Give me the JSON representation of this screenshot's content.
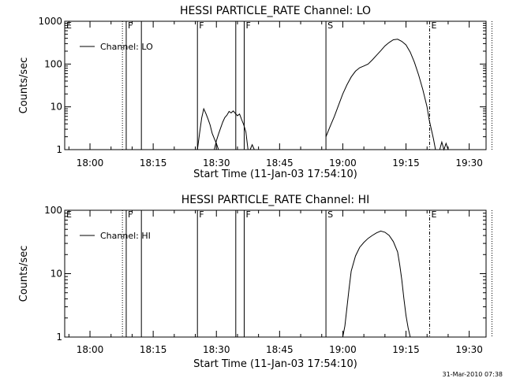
{
  "timestamp": "31-Mar-2010 07:38",
  "chart_data": [
    {
      "type": "line",
      "title": "HESSI PARTICLE_RATE Channel: LO",
      "xlabel": "Start Time (11-Jan-03 17:54:10)",
      "ylabel": "Counts/sec",
      "ylog": true,
      "ylim": [
        1,
        1000
      ],
      "xlim_min": [
        0,
        100
      ],
      "xticks": [
        {
          "label": "18:00",
          "min": 6
        },
        {
          "label": "18:15",
          "min": 21
        },
        {
          "label": "18:30",
          "min": 36
        },
        {
          "label": "18:45",
          "min": 51
        },
        {
          "label": "19:00",
          "min": 66
        },
        {
          "label": "19:15",
          "min": 81
        },
        {
          "label": "19:30",
          "min": 96
        }
      ],
      "yticks": [
        {
          "label": "1",
          "value": 1
        },
        {
          "label": "10",
          "value": 10
        },
        {
          "label": "100",
          "value": 100
        },
        {
          "label": "1000",
          "value": 1000
        }
      ],
      "legend": {
        "name": "Channel: LO",
        "position": "top-left"
      },
      "flags": [
        {
          "label": "E",
          "min": 0,
          "style": "none"
        },
        {
          "label": "",
          "min": 13.7,
          "style": "dotted"
        },
        {
          "label": "F",
          "min": 14.6,
          "style": "solid"
        },
        {
          "label": "",
          "min": 18.2,
          "style": "solid"
        },
        {
          "label": "F",
          "min": 31.5,
          "style": "solid"
        },
        {
          "label": "",
          "min": 40.6,
          "style": "solid"
        },
        {
          "label": "F",
          "min": 42.6,
          "style": "solid"
        },
        {
          "label": "S",
          "min": 62.0,
          "style": "solid"
        },
        {
          "label": "E",
          "min": 86.6,
          "style": "dashdot"
        },
        {
          "label": "",
          "min": 101.4,
          "style": "dotted"
        }
      ],
      "segments": [
        {
          "x": [
            31.5,
            32,
            32.5,
            33,
            33.5,
            34,
            34.5,
            35,
            35.5,
            36,
            36.5
          ],
          "y": [
            1.0,
            2.4,
            5.5,
            9.0,
            7.0,
            5.2,
            3.8,
            2.4,
            1.8,
            1.4,
            1.0
          ]
        },
        {
          "x": [
            35.5,
            36,
            36.5,
            37,
            37.5,
            38,
            38.5,
            39,
            39.5,
            40,
            40.5,
            41,
            41.5,
            42,
            42.5,
            43,
            43.5
          ],
          "y": [
            1.0,
            1.6,
            2.3,
            3.2,
            4.4,
            5.6,
            6.4,
            7.8,
            7.2,
            8.0,
            7.0,
            6.2,
            6.8,
            5.0,
            3.8,
            2.6,
            1.0
          ]
        },
        {
          "x": [
            44,
            44.5,
            45
          ],
          "y": [
            1.0,
            1.3,
            1.0
          ]
        },
        {
          "x": [
            62,
            63,
            64,
            65,
            66,
            67,
            68,
            69,
            70,
            71,
            72,
            73,
            74,
            75,
            76,
            77,
            78,
            79,
            80,
            81,
            82,
            83,
            84,
            85,
            86,
            86.5,
            87,
            87.5,
            88
          ],
          "y": [
            2.0,
            3.5,
            6.0,
            11,
            20,
            33,
            50,
            68,
            82,
            90,
            100,
            125,
            160,
            205,
            265,
            320,
            370,
            380,
            340,
            280,
            190,
            110,
            55,
            25,
            10,
            5,
            3,
            1.8,
            1.0
          ]
        },
        {
          "x": [
            89,
            89.5,
            90,
            90.5,
            91
          ],
          "y": [
            1.0,
            1.5,
            1.0,
            1.4,
            1.0
          ]
        }
      ]
    },
    {
      "type": "line",
      "title": "HESSI PARTICLE_RATE Channel: HI",
      "xlabel": "Start Time (11-Jan-03 17:54:10)",
      "ylabel": "Counts/sec",
      "ylog": true,
      "ylim": [
        1,
        100
      ],
      "xlim_min": [
        0,
        100
      ],
      "xticks": [
        {
          "label": "18:00",
          "min": 6
        },
        {
          "label": "18:15",
          "min": 21
        },
        {
          "label": "18:30",
          "min": 36
        },
        {
          "label": "18:45",
          "min": 51
        },
        {
          "label": "19:00",
          "min": 66
        },
        {
          "label": "19:15",
          "min": 81
        },
        {
          "label": "19:30",
          "min": 96
        }
      ],
      "yticks": [
        {
          "label": "1",
          "value": 1
        },
        {
          "label": "10",
          "value": 10
        },
        {
          "label": "100",
          "value": 100
        }
      ],
      "legend": {
        "name": "Channel: HI",
        "position": "top-left"
      },
      "flags": [
        {
          "label": "E",
          "min": 0,
          "style": "none"
        },
        {
          "label": "",
          "min": 13.7,
          "style": "dotted"
        },
        {
          "label": "F",
          "min": 14.6,
          "style": "solid"
        },
        {
          "label": "",
          "min": 18.2,
          "style": "solid"
        },
        {
          "label": "F",
          "min": 31.5,
          "style": "solid"
        },
        {
          "label": "",
          "min": 40.6,
          "style": "solid"
        },
        {
          "label": "F",
          "min": 42.6,
          "style": "solid"
        },
        {
          "label": "S",
          "min": 62.0,
          "style": "solid"
        },
        {
          "label": "E",
          "min": 86.6,
          "style": "dashdot"
        },
        {
          "label": "",
          "min": 101.4,
          "style": "dotted"
        }
      ],
      "segments": [
        {
          "x": [
            66,
            66.5,
            67,
            67.5,
            68,
            69,
            70,
            71,
            72,
            73,
            74,
            75,
            76,
            77,
            78,
            79,
            79.5,
            80,
            80.5,
            81,
            81.5,
            82
          ],
          "y": [
            1.0,
            1.5,
            3.0,
            6.0,
            11,
            19,
            26,
            31,
            36,
            40,
            44,
            47,
            45,
            40,
            32,
            22,
            14,
            8,
            4,
            2.2,
            1.4,
            1.0
          ]
        }
      ]
    }
  ]
}
